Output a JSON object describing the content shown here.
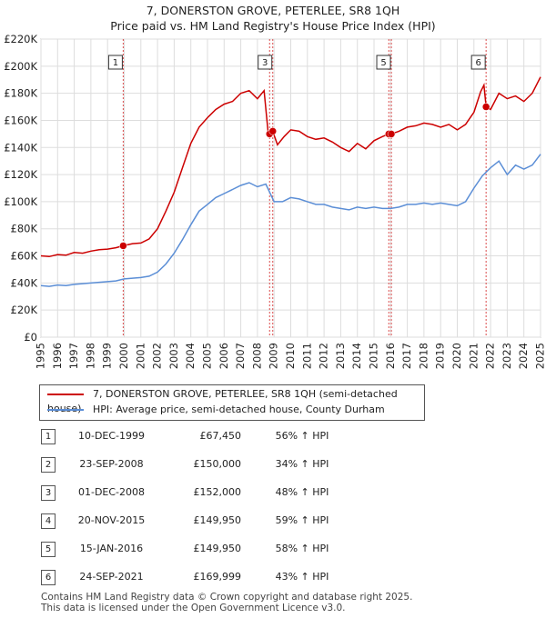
{
  "title_line1": "7, DONERSTON GROVE, PETERLEE, SR8 1QH",
  "title_line2": "Price paid vs. HM Land Registry's House Price Index (HPI)",
  "colors": {
    "property": "#cc0000",
    "hpi": "#5b8ed6",
    "grid": "#dddddd",
    "marker_line": "#cc0000"
  },
  "chart_data": {
    "type": "line",
    "y_ticks": [
      "£0",
      "£20K",
      "£40K",
      "£60K",
      "£80K",
      "£100K",
      "£120K",
      "£140K",
      "£160K",
      "£180K",
      "£200K",
      "£220K"
    ],
    "ylim": [
      0,
      220000
    ],
    "x_ticks": [
      "1995",
      "1996",
      "1997",
      "1998",
      "1999",
      "2000",
      "2001",
      "2002",
      "2003",
      "2004",
      "2005",
      "2006",
      "2007",
      "2008",
      "2009",
      "2010",
      "2011",
      "2012",
      "2013",
      "2014",
      "2015",
      "2016",
      "2017",
      "2018",
      "2019",
      "2020",
      "2021",
      "2022",
      "2023",
      "2024",
      "2025"
    ],
    "xlim": [
      1995,
      2025
    ],
    "grid": true,
    "series": [
      {
        "name": "7, DONERSTON GROVE, PETERLEE, SR8 1QH (semi-detached house)",
        "x": [
          1995.0,
          1995.5,
          1996.0,
          1996.5,
          1997.0,
          1997.5,
          1998.0,
          1998.5,
          1999.0,
          1999.5,
          1999.94,
          2000.5,
          2001.0,
          2001.5,
          2002.0,
          2002.5,
          2003.0,
          2003.5,
          2004.0,
          2004.5,
          2005.0,
          2005.5,
          2006.0,
          2006.5,
          2007.0,
          2007.5,
          2008.0,
          2008.4,
          2008.65,
          2008.72,
          2008.92,
          2009.2,
          2009.6,
          2010.0,
          2010.5,
          2011.0,
          2011.5,
          2012.0,
          2012.5,
          2013.0,
          2013.5,
          2014.0,
          2014.5,
          2015.0,
          2015.5,
          2015.89,
          2016.04,
          2016.5,
          2017.0,
          2017.5,
          2018.0,
          2018.5,
          2019.0,
          2019.5,
          2020.0,
          2020.5,
          2021.0,
          2021.4,
          2021.6,
          2021.73,
          2022.0,
          2022.5,
          2023.0,
          2023.5,
          2024.0,
          2024.5,
          2025.0
        ],
        "y": [
          60000,
          59500,
          61000,
          60500,
          62500,
          62000,
          63500,
          64500,
          65000,
          66000,
          67450,
          69000,
          69500,
          72500,
          80000,
          93000,
          107000,
          125000,
          143000,
          155000,
          162000,
          168000,
          172000,
          174000,
          180000,
          182000,
          176000,
          182000,
          150000,
          152000,
          152000,
          142000,
          148000,
          153000,
          152000,
          148000,
          146000,
          147000,
          144000,
          140000,
          137000,
          143000,
          139000,
          145000,
          148000,
          149950,
          149950,
          152000,
          155000,
          156000,
          158000,
          157000,
          155000,
          157000,
          153000,
          157000,
          166000,
          181000,
          186000,
          169999,
          168000,
          180000,
          176000,
          178000,
          174000,
          180000,
          192000
        ]
      },
      {
        "name": "HPI: Average price, semi-detached house, County Durham",
        "x": [
          1995.0,
          1995.5,
          1996.0,
          1996.5,
          1997.0,
          1997.5,
          1998.0,
          1998.5,
          1999.0,
          1999.5,
          2000.0,
          2000.5,
          2001.0,
          2001.5,
          2002.0,
          2002.5,
          2003.0,
          2003.5,
          2004.0,
          2004.5,
          2005.0,
          2005.5,
          2006.0,
          2006.5,
          2007.0,
          2007.5,
          2008.0,
          2008.5,
          2009.0,
          2009.5,
          2010.0,
          2010.5,
          2011.0,
          2011.5,
          2012.0,
          2012.5,
          2013.0,
          2013.5,
          2014.0,
          2014.5,
          2015.0,
          2015.5,
          2016.0,
          2016.5,
          2017.0,
          2017.5,
          2018.0,
          2018.5,
          2019.0,
          2019.5,
          2020.0,
          2020.5,
          2021.0,
          2021.5,
          2022.0,
          2022.5,
          2023.0,
          2023.5,
          2024.0,
          2024.5,
          2025.0
        ],
        "y": [
          38000,
          37500,
          38500,
          38000,
          39000,
          39500,
          40000,
          40500,
          41000,
          41500,
          43000,
          43500,
          44000,
          45000,
          48000,
          54000,
          62000,
          72000,
          83000,
          93000,
          98000,
          103000,
          106000,
          109000,
          112000,
          114000,
          111000,
          113000,
          100000,
          100000,
          103000,
          102000,
          100000,
          98000,
          98000,
          96000,
          95000,
          94000,
          96000,
          95000,
          96000,
          95000,
          95000,
          96000,
          98000,
          98000,
          99000,
          98000,
          99000,
          98000,
          97000,
          100000,
          110000,
          119000,
          125000,
          130000,
          120000,
          127000,
          124000,
          127000,
          135000
        ]
      }
    ],
    "sales": [
      {
        "n": "1",
        "x": 1999.94,
        "y": 67450
      },
      {
        "n": "2",
        "x": 2008.73,
        "y": 150000
      },
      {
        "n": "3",
        "x": 2008.92,
        "y": 152000
      },
      {
        "n": "4",
        "x": 2015.89,
        "y": 149950
      },
      {
        "n": "5",
        "x": 2016.04,
        "y": 149950
      },
      {
        "n": "6",
        "x": 2021.73,
        "y": 169999
      }
    ],
    "marker_labels": [
      "1",
      "3",
      "5",
      "6"
    ]
  },
  "legend": {
    "property": "7, DONERSTON GROVE, PETERLEE, SR8 1QH (semi-detached house)",
    "hpi": "HPI: Average price, semi-detached house, County Durham"
  },
  "table": [
    {
      "n": "1",
      "date": "10-DEC-1999",
      "price": "£67,450",
      "hpi": "56% ↑ HPI"
    },
    {
      "n": "2",
      "date": "23-SEP-2008",
      "price": "£150,000",
      "hpi": "34% ↑ HPI"
    },
    {
      "n": "3",
      "date": "01-DEC-2008",
      "price": "£152,000",
      "hpi": "48% ↑ HPI"
    },
    {
      "n": "4",
      "date": "20-NOV-2015",
      "price": "£149,950",
      "hpi": "59% ↑ HPI"
    },
    {
      "n": "5",
      "date": "15-JAN-2016",
      "price": "£149,950",
      "hpi": "58% ↑ HPI"
    },
    {
      "n": "6",
      "date": "24-SEP-2021",
      "price": "£169,999",
      "hpi": "43% ↑ HPI"
    }
  ],
  "footer_line1": "Contains HM Land Registry data © Crown copyright and database right 2025.",
  "footer_line2": "This data is licensed under the Open Government Licence v3.0."
}
